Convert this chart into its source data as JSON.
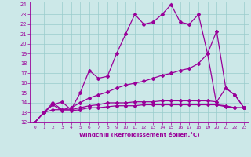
{
  "xlabel": "Windchill (Refroidissement éolien,°C)",
  "xlim": [
    -0.5,
    23.5
  ],
  "ylim": [
    12,
    24.3
  ],
  "yticks": [
    12,
    13,
    14,
    15,
    16,
    17,
    18,
    19,
    20,
    21,
    22,
    23,
    24
  ],
  "xticks": [
    0,
    1,
    2,
    3,
    4,
    5,
    6,
    7,
    8,
    9,
    10,
    11,
    12,
    13,
    14,
    15,
    16,
    17,
    18,
    19,
    20,
    21,
    22,
    23
  ],
  "background_color": "#cce8e8",
  "line_color": "#990099",
  "grid_color": "#99cccc",
  "line1_x": [
    0,
    1,
    2,
    3,
    4,
    5,
    6,
    7,
    8,
    9,
    10,
    11,
    12,
    13,
    14,
    15,
    16,
    17,
    18,
    19,
    20,
    21,
    22,
    23
  ],
  "line1_y": [
    12,
    13,
    13.8,
    14.1,
    13.3,
    15.0,
    17.3,
    16.5,
    16.7,
    19.0,
    21.0,
    23.0,
    22.0,
    22.2,
    23.0,
    24.0,
    22.2,
    22.0,
    23.0,
    19.0,
    21.3,
    15.5,
    14.8,
    13.5
  ],
  "line2_x": [
    0,
    1,
    2,
    3,
    4,
    5,
    6,
    7,
    8,
    9,
    10,
    11,
    12,
    13,
    14,
    15,
    16,
    17,
    18,
    19,
    20,
    21,
    22,
    23
  ],
  "line2_y": [
    12,
    13,
    13.3,
    13.3,
    13.5,
    14.0,
    14.5,
    14.8,
    15.1,
    15.5,
    15.8,
    16.0,
    16.2,
    16.5,
    16.8,
    17.0,
    17.3,
    17.5,
    18.0,
    19.0,
    13.8,
    13.7,
    13.5,
    13.5
  ],
  "line3_x": [
    0,
    1,
    2,
    3,
    4,
    5,
    6,
    7,
    8,
    9,
    10,
    11,
    12,
    13,
    14,
    15,
    16,
    17,
    18,
    19,
    20,
    21,
    22,
    23
  ],
  "line3_y": [
    12,
    13,
    14.0,
    13.3,
    13.3,
    13.5,
    13.7,
    13.8,
    14.0,
    14.0,
    14.0,
    14.1,
    14.1,
    14.1,
    14.2,
    14.2,
    14.2,
    14.2,
    14.2,
    14.2,
    14.1,
    15.5,
    14.8,
    13.5
  ],
  "line4_x": [
    0,
    1,
    2,
    3,
    4,
    5,
    6,
    7,
    8,
    9,
    10,
    11,
    12,
    13,
    14,
    15,
    16,
    17,
    18,
    19,
    20,
    21,
    22,
    23
  ],
  "line4_y": [
    12,
    13,
    13.8,
    13.2,
    13.2,
    13.3,
    13.5,
    13.5,
    13.6,
    13.7,
    13.7,
    13.7,
    13.8,
    13.8,
    13.8,
    13.8,
    13.8,
    13.8,
    13.8,
    13.8,
    13.8,
    13.6,
    13.5,
    13.5
  ]
}
